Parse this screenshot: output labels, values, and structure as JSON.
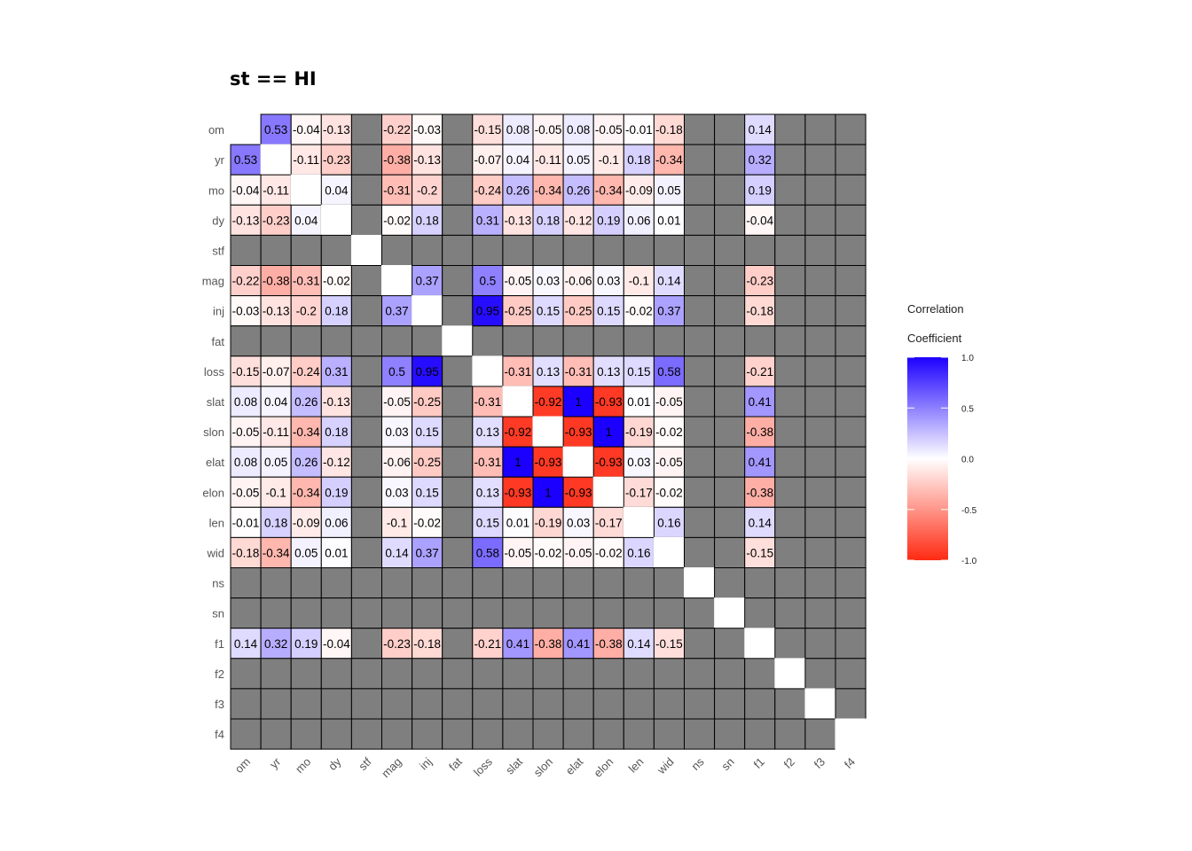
{
  "chart_data": {
    "type": "heatmap",
    "title": "st == HI",
    "variables": [
      "om",
      "yr",
      "mo",
      "dy",
      "stf",
      "mag",
      "inj",
      "fat",
      "loss",
      "slat",
      "slon",
      "elat",
      "elon",
      "len",
      "wid",
      "ns",
      "sn",
      "f1",
      "f2",
      "f3",
      "f4"
    ],
    "values": [
      [
        null,
        0.53,
        -0.04,
        -0.13,
        null,
        -0.22,
        -0.03,
        null,
        -0.15,
        0.08,
        -0.05,
        0.08,
        -0.05,
        -0.01,
        -0.18,
        null,
        null,
        0.14,
        null,
        null,
        null
      ],
      [
        0.53,
        null,
        -0.11,
        -0.23,
        null,
        -0.38,
        -0.13,
        null,
        -0.07,
        0.04,
        -0.11,
        0.05,
        -0.1,
        0.18,
        -0.34,
        null,
        null,
        0.32,
        null,
        null,
        null
      ],
      [
        -0.04,
        -0.11,
        null,
        0.04,
        null,
        -0.31,
        -0.2,
        null,
        -0.24,
        0.26,
        -0.34,
        0.26,
        -0.34,
        -0.09,
        0.05,
        null,
        null,
        0.19,
        null,
        null,
        null
      ],
      [
        -0.13,
        -0.23,
        0.04,
        null,
        null,
        -0.02,
        0.18,
        null,
        0.31,
        -0.13,
        0.18,
        -0.12,
        0.19,
        0.06,
        0.01,
        null,
        null,
        -0.04,
        null,
        null,
        null
      ],
      [
        null,
        null,
        null,
        null,
        null,
        null,
        null,
        null,
        null,
        null,
        null,
        null,
        null,
        null,
        null,
        null,
        null,
        null,
        null,
        null,
        null
      ],
      [
        -0.22,
        -0.38,
        -0.31,
        -0.02,
        null,
        null,
        0.37,
        null,
        0.5,
        -0.05,
        0.03,
        -0.06,
        0.03,
        -0.1,
        0.14,
        null,
        null,
        -0.23,
        null,
        null,
        null
      ],
      [
        -0.03,
        -0.13,
        -0.2,
        0.18,
        null,
        0.37,
        null,
        null,
        0.95,
        -0.25,
        0.15,
        -0.25,
        0.15,
        -0.02,
        0.37,
        null,
        null,
        -0.18,
        null,
        null,
        null
      ],
      [
        null,
        null,
        null,
        null,
        null,
        null,
        null,
        null,
        null,
        null,
        null,
        null,
        null,
        null,
        null,
        null,
        null,
        null,
        null,
        null,
        null
      ],
      [
        -0.15,
        -0.07,
        -0.24,
        0.31,
        null,
        0.5,
        0.95,
        null,
        null,
        -0.31,
        0.13,
        -0.31,
        0.13,
        0.15,
        0.58,
        null,
        null,
        -0.21,
        null,
        null,
        null
      ],
      [
        0.08,
        0.04,
        0.26,
        -0.13,
        null,
        -0.05,
        -0.25,
        null,
        -0.31,
        null,
        -0.92,
        1,
        -0.93,
        0.01,
        -0.05,
        null,
        null,
        0.41,
        null,
        null,
        null
      ],
      [
        -0.05,
        -0.11,
        -0.34,
        0.18,
        null,
        0.03,
        0.15,
        null,
        0.13,
        -0.92,
        null,
        -0.93,
        1,
        -0.19,
        -0.02,
        null,
        null,
        -0.38,
        null,
        null,
        null
      ],
      [
        0.08,
        0.05,
        0.26,
        -0.12,
        null,
        -0.06,
        -0.25,
        null,
        -0.31,
        1,
        -0.93,
        null,
        -0.93,
        0.03,
        -0.05,
        null,
        null,
        0.41,
        null,
        null,
        null
      ],
      [
        -0.05,
        -0.1,
        -0.34,
        0.19,
        null,
        0.03,
        0.15,
        null,
        0.13,
        -0.93,
        1,
        -0.93,
        null,
        -0.17,
        -0.02,
        null,
        null,
        -0.38,
        null,
        null,
        null
      ],
      [
        -0.01,
        0.18,
        -0.09,
        0.06,
        null,
        -0.1,
        -0.02,
        null,
        0.15,
        0.01,
        -0.19,
        0.03,
        -0.17,
        null,
        0.16,
        null,
        null,
        0.14,
        null,
        null,
        null
      ],
      [
        -0.18,
        -0.34,
        0.05,
        0.01,
        null,
        0.14,
        0.37,
        null,
        0.58,
        -0.05,
        -0.02,
        -0.05,
        -0.02,
        0.16,
        null,
        null,
        null,
        -0.15,
        null,
        null,
        null
      ],
      [
        null,
        null,
        null,
        null,
        null,
        null,
        null,
        null,
        null,
        null,
        null,
        null,
        null,
        null,
        null,
        null,
        null,
        null,
        null,
        null,
        null
      ],
      [
        null,
        null,
        null,
        null,
        null,
        null,
        null,
        null,
        null,
        null,
        null,
        null,
        null,
        null,
        null,
        null,
        null,
        null,
        null,
        null,
        null
      ],
      [
        0.14,
        0.32,
        0.19,
        -0.04,
        null,
        -0.23,
        -0.18,
        null,
        -0.21,
        0.41,
        -0.38,
        0.41,
        -0.38,
        0.14,
        -0.15,
        null,
        null,
        null,
        null,
        null,
        null
      ],
      [
        null,
        null,
        null,
        null,
        null,
        null,
        null,
        null,
        null,
        null,
        null,
        null,
        null,
        null,
        null,
        null,
        null,
        null,
        null,
        null,
        null
      ],
      [
        null,
        null,
        null,
        null,
        null,
        null,
        null,
        null,
        null,
        null,
        null,
        null,
        null,
        null,
        null,
        null,
        null,
        null,
        null,
        null,
        null
      ],
      [
        null,
        null,
        null,
        null,
        null,
        null,
        null,
        null,
        null,
        null,
        null,
        null,
        null,
        null,
        null,
        null,
        null,
        null,
        null,
        null,
        null
      ]
    ],
    "diagonal_blank": true,
    "na_color": "#7f7f7f",
    "legend": {
      "title_line1": "Correlation",
      "title_line2": "Coefficient",
      "ticks": [
        "1.0",
        "0.5",
        "0.0",
        "-0.5",
        "-1.0"
      ],
      "tick_values": [
        1.0,
        0.5,
        0.0,
        -0.5,
        -1.0
      ],
      "range": [
        -1,
        1
      ],
      "placement": "right"
    },
    "colors": {
      "low": "#ff2a12",
      "mid": "#ffffff",
      "high": "#1c00ff"
    }
  }
}
